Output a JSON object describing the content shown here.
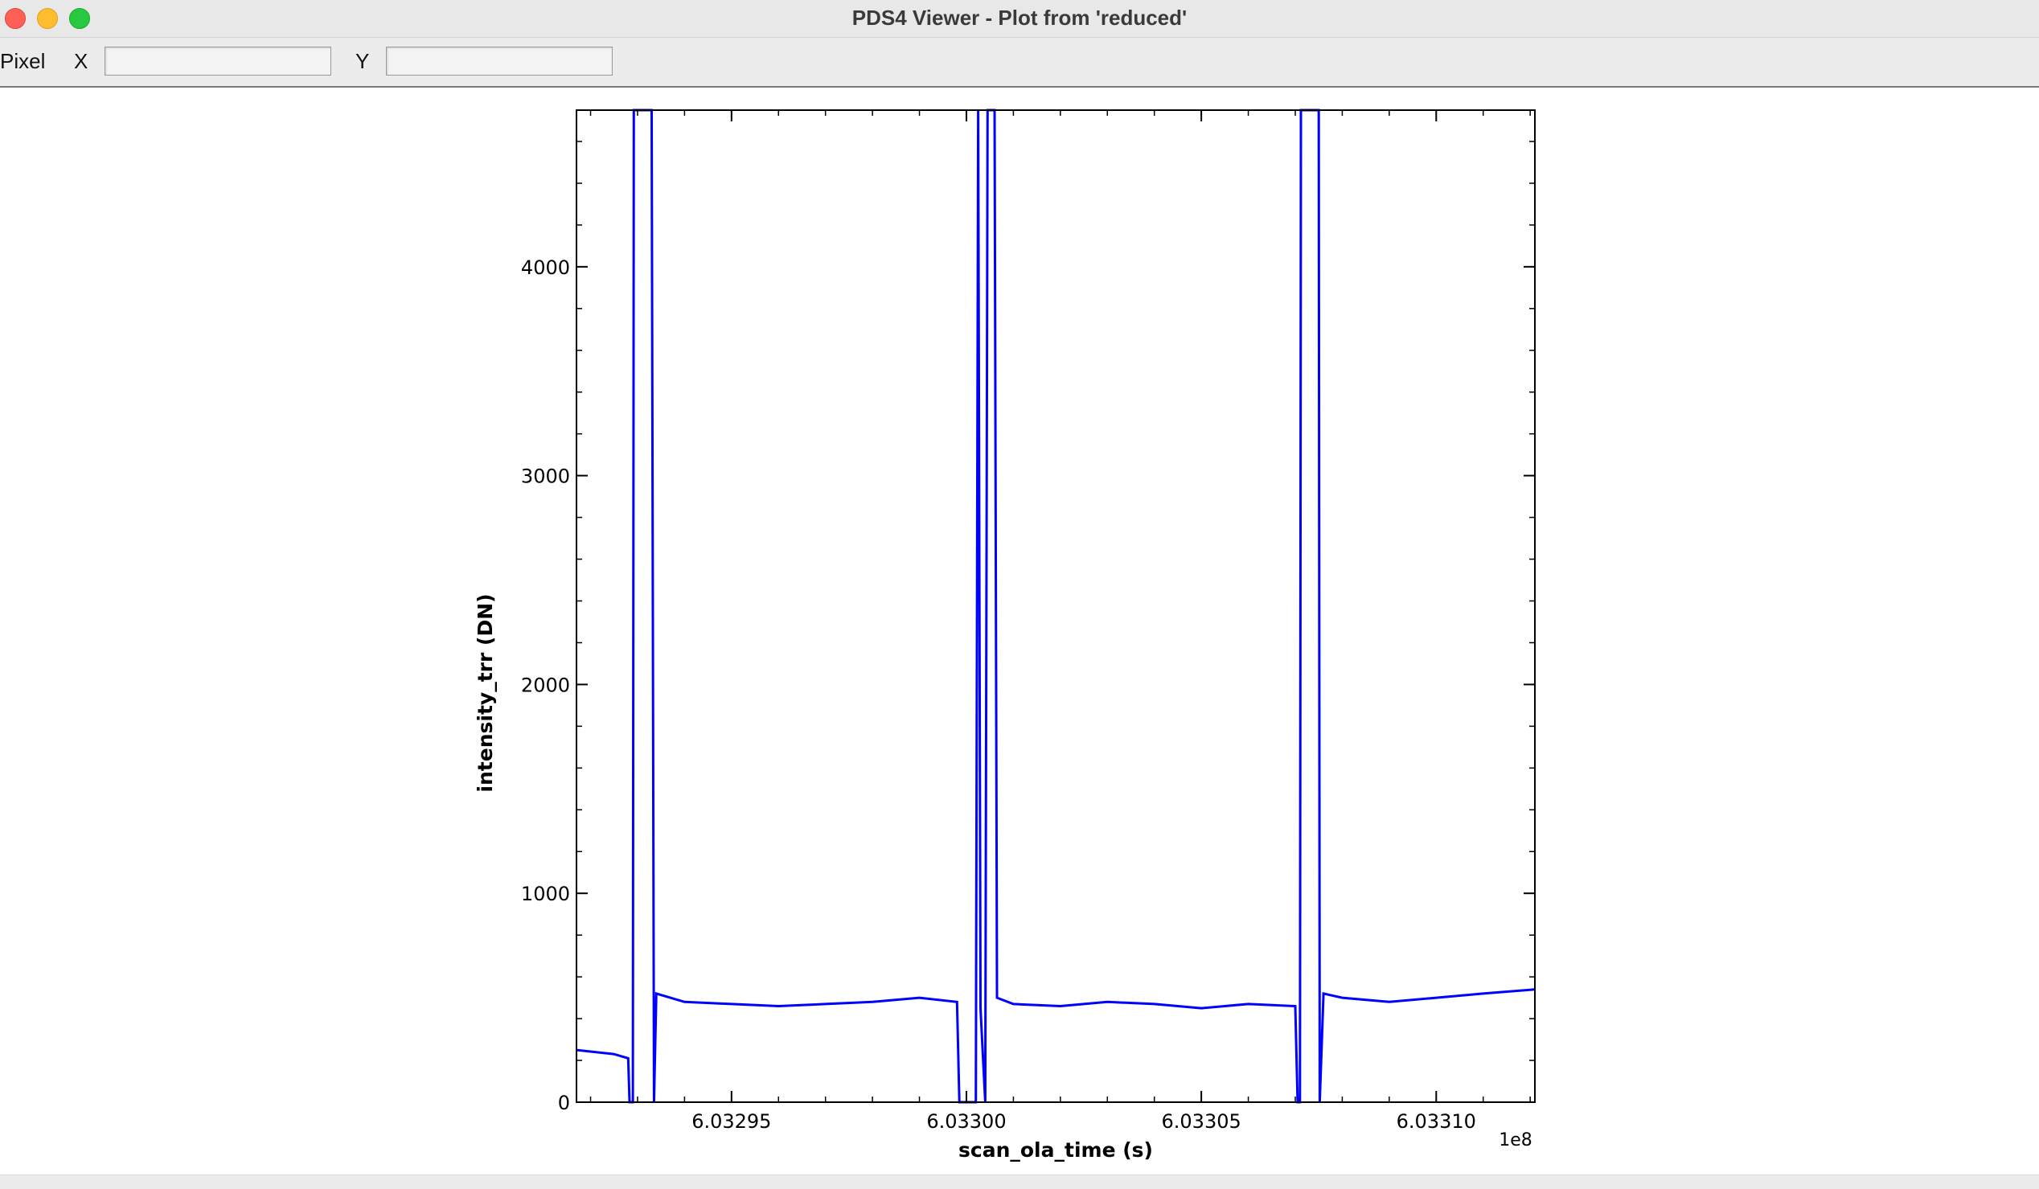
{
  "window": {
    "title": "PDS4 Viewer - Plot from 'reduced'"
  },
  "toolbar": {
    "pixel_label": "Pixel",
    "x_label": "X",
    "x_value": "",
    "y_label": "Y",
    "y_value": ""
  },
  "colors": {
    "series": "#0000ff",
    "axes": "#000000",
    "background": "#ffffff"
  },
  "chart_data": {
    "type": "line",
    "title": "",
    "xlabel": "scan_ola_time (s)",
    "ylabel": "intensity_trr (DN)",
    "x_offset_label": "1e8",
    "xlim": [
      6.032917,
      6.033121
    ],
    "ylim": [
      0,
      4750
    ],
    "x_ticks": [
      6.03295,
      6.033,
      6.03305,
      6.0331
    ],
    "x_tick_labels": [
      "6.03295",
      "6.03300",
      "6.03305",
      "6.03310"
    ],
    "y_ticks": [
      0,
      1000,
      2000,
      3000,
      4000
    ],
    "y_tick_labels": [
      "0",
      "1000",
      "2000",
      "3000",
      "4000"
    ],
    "grid": false,
    "series": [
      {
        "x": [
          6.032917,
          6.032925,
          6.032928,
          6.0329283,
          6.032929,
          6.0329292,
          6.03293,
          6.032933,
          6.0329335,
          6.032934,
          6.03294,
          6.03295,
          6.03296,
          6.03297,
          6.03298,
          6.03299,
          6.032998,
          6.0329985,
          6.033002,
          6.0330025,
          6.033003,
          6.033004,
          6.0330045,
          6.033006,
          6.0330065,
          6.03301,
          6.03302,
          6.03303,
          6.03304,
          6.03305,
          6.03306,
          6.03307,
          6.0330705,
          6.033071,
          6.0330712,
          6.033072,
          6.033075,
          6.0330752,
          6.033076,
          6.03308,
          6.03309,
          6.0331,
          6.03311,
          6.033121
        ],
        "y": [
          250,
          230,
          210,
          0,
          0,
          4750,
          4750,
          4750,
          0,
          520,
          480,
          470,
          460,
          470,
          480,
          500,
          480,
          0,
          0,
          4750,
          450,
          0,
          4750,
          4750,
          500,
          470,
          460,
          480,
          470,
          450,
          470,
          460,
          0,
          0,
          4750,
          4750,
          4750,
          0,
          520,
          500,
          480,
          500,
          520,
          540
        ]
      }
    ]
  }
}
